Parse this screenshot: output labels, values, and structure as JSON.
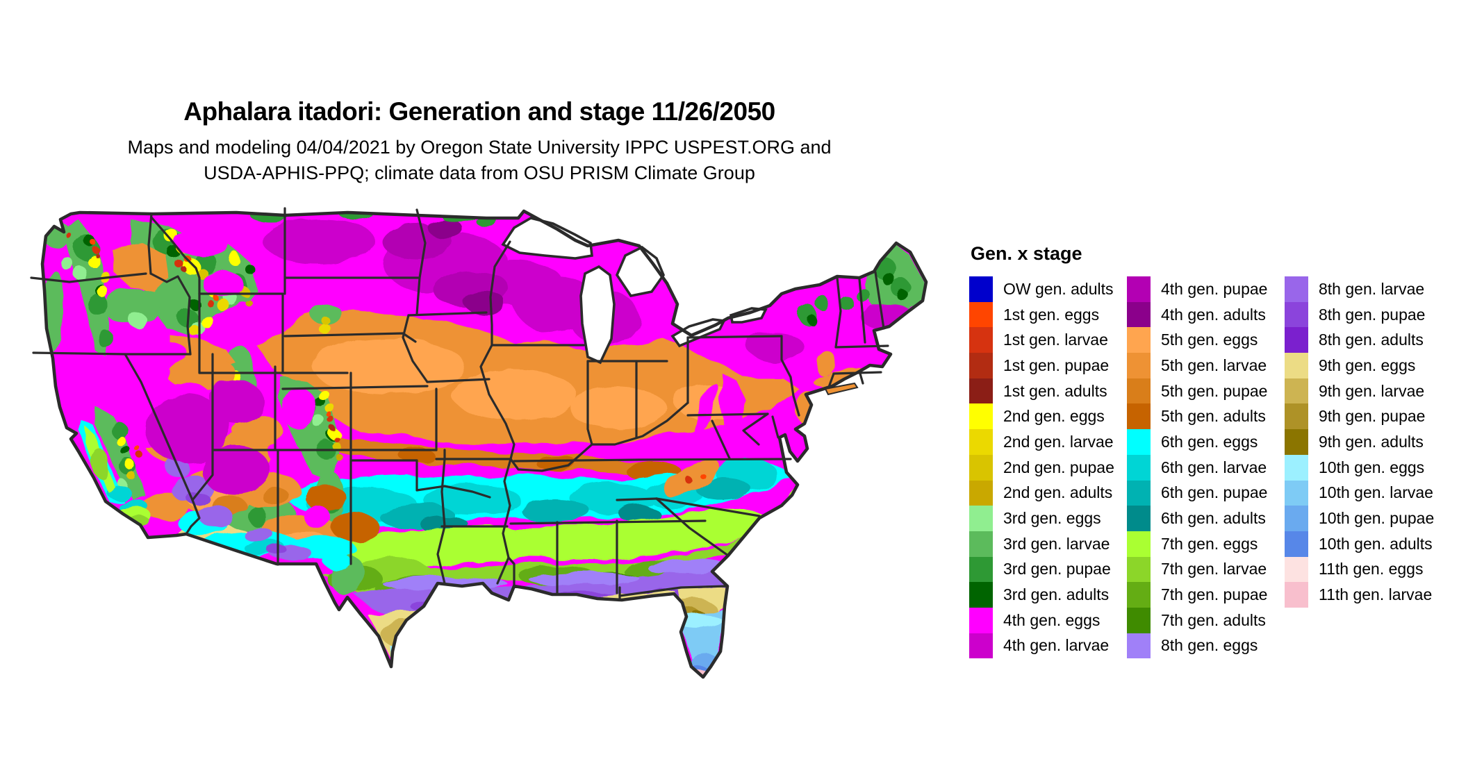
{
  "header": {
    "title": "Aphalara itadori: Generation and stage 11/26/2050",
    "subtitle_line1": "Maps and modeling 04/04/2021 by Oregon State University IPPC USPEST.ORG and",
    "subtitle_line2": "USDA-APHIS-PPQ; climate data from OSU PRISM Climate Group"
  },
  "legend": {
    "title": "Gen. x stage",
    "columns": [
      {
        "items": [
          {
            "key": "ow_adults",
            "label": "OW gen. adults",
            "color": "#0000CC"
          },
          {
            "key": "g1_eggs",
            "label": "1st gen. eggs",
            "color": "#FF4500"
          },
          {
            "key": "g1_larvae",
            "label": "1st gen. larvae",
            "color": "#D63310"
          },
          {
            "key": "g1_pupae",
            "label": "1st gen. pupae",
            "color": "#B22C12"
          },
          {
            "key": "g1_adults",
            "label": "1st gen. adults",
            "color": "#8B1E16"
          },
          {
            "key": "g2_eggs",
            "label": "2nd gen. eggs",
            "color": "#FFFF00"
          },
          {
            "key": "g2_larvae",
            "label": "2nd gen. larvae",
            "color": "#EBD900"
          },
          {
            "key": "g2_pupae",
            "label": "2nd gen. pupae",
            "color": "#D9C400"
          },
          {
            "key": "g2_adults",
            "label": "2nd gen. adults",
            "color": "#C9A800"
          },
          {
            "key": "g3_eggs",
            "label": "3rd gen. eggs",
            "color": "#90EE90"
          },
          {
            "key": "g3_larvae",
            "label": "3rd gen. larvae",
            "color": "#5CBB5C"
          },
          {
            "key": "g3_pupae",
            "label": "3rd gen. pupae",
            "color": "#2E9934"
          },
          {
            "key": "g3_adults",
            "label": "3rd gen. adults",
            "color": "#006400"
          },
          {
            "key": "g4_eggs",
            "label": "4th gen. eggs",
            "color": "#FF00FF"
          },
          {
            "key": "g4_larvae",
            "label": "4th gen. larvae",
            "color": "#CC00CC"
          }
        ]
      },
      {
        "items": [
          {
            "key": "g4_pupae",
            "label": "4th gen. pupae",
            "color": "#B300B3"
          },
          {
            "key": "g4_adults",
            "label": "4th gen. adults",
            "color": "#8B008B"
          },
          {
            "key": "g5_eggs",
            "label": "5th gen. eggs",
            "color": "#FFA54F"
          },
          {
            "key": "g5_larvae",
            "label": "5th gen. larvae",
            "color": "#EE9234"
          },
          {
            "key": "g5_pupae",
            "label": "5th gen. pupae",
            "color": "#D97E1A"
          },
          {
            "key": "g5_adults",
            "label": "5th gen. adults",
            "color": "#C66300"
          },
          {
            "key": "g6_eggs",
            "label": "6th gen. eggs",
            "color": "#00FFFF"
          },
          {
            "key": "g6_larvae",
            "label": "6th gen. larvae",
            "color": "#00D5D5"
          },
          {
            "key": "g6_pupae",
            "label": "6th gen. pupae",
            "color": "#00B2B2"
          },
          {
            "key": "g6_adults",
            "label": "6th gen. adults",
            "color": "#008B8B"
          },
          {
            "key": "g7_eggs",
            "label": "7th gen. eggs",
            "color": "#AAFF32"
          },
          {
            "key": "g7_larvae",
            "label": "7th gen. larvae",
            "color": "#8CD629"
          },
          {
            "key": "g7_pupae",
            "label": "7th gen. pupae",
            "color": "#64AD14"
          },
          {
            "key": "g7_adults",
            "label": "7th gen. adults",
            "color": "#3F8B00"
          },
          {
            "key": "g8_eggs",
            "label": "8th gen. eggs",
            "color": "#A080F8"
          }
        ]
      },
      {
        "items": [
          {
            "key": "g8_larvae",
            "label": "8th gen. larvae",
            "color": "#9966EA"
          },
          {
            "key": "g8_pupae",
            "label": "8th gen. pupae",
            "color": "#8B44DC"
          },
          {
            "key": "g8_adults",
            "label": "8th gen. adults",
            "color": "#7B20CE"
          },
          {
            "key": "g9_eggs",
            "label": "9th gen. eggs",
            "color": "#ECDC85"
          },
          {
            "key": "g9_larvae",
            "label": "9th gen. larvae",
            "color": "#CDB452"
          },
          {
            "key": "g9_pupae",
            "label": "9th gen. pupae",
            "color": "#AE9227"
          },
          {
            "key": "g9_adults",
            "label": "9th gen. adults",
            "color": "#8B7500"
          },
          {
            "key": "g10_eggs",
            "label": "10th gen. eggs",
            "color": "#9CF0FF"
          },
          {
            "key": "g10_larvae",
            "label": "10th gen. larvae",
            "color": "#7ECBF5"
          },
          {
            "key": "g10_pupae",
            "label": "10th gen. pupae",
            "color": "#6AAAEF"
          },
          {
            "key": "g10_adults",
            "label": "10th gen. adults",
            "color": "#5787E8"
          },
          {
            "key": "g11_eggs",
            "label": "11th gen. eggs",
            "color": "#FDE2E1"
          },
          {
            "key": "g11_larvae",
            "label": "11th gen. larvae",
            "color": "#F8BFCD"
          }
        ]
      }
    ]
  },
  "map": {
    "region": "Continental United States",
    "background_color": "#FFFFFF",
    "border_color": "#2B2B2B",
    "water_color": "#FFFFFF"
  }
}
